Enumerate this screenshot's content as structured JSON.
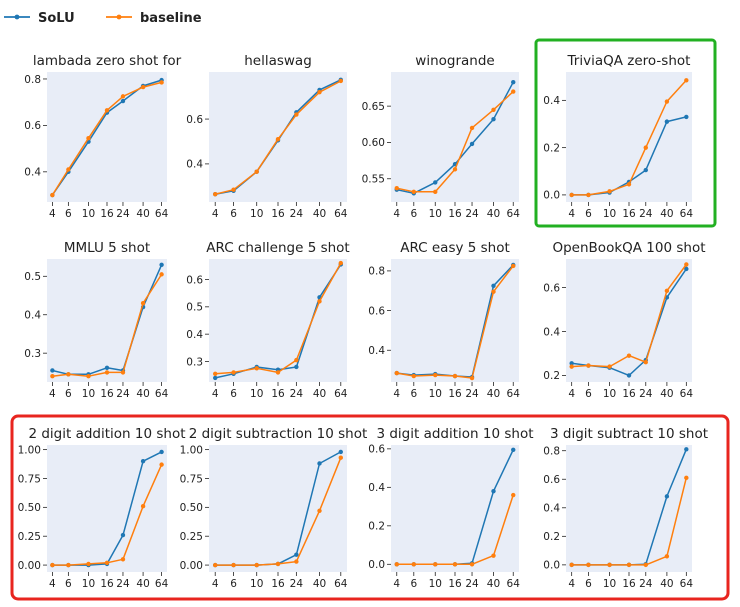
{
  "legend": [
    {
      "name": "SoLU",
      "color": "#1f77b4"
    },
    {
      "name": "baseline",
      "color": "#ff7f0e"
    }
  ],
  "colors": {
    "plot_bg": "#e8edf7",
    "green_box": "#22b022",
    "red_box": "#e8251f"
  },
  "highlight": {
    "green": [
      "TriviaQA zero-shot"
    ],
    "red": [
      "2 digit addition 10 shot",
      "2 digit subtraction 10 shot",
      "3 digit addition 10 shot",
      "3 digit subtract 10 shot"
    ]
  },
  "chart_data": [
    {
      "type": "line",
      "title": "lambada zero shot for",
      "x": [
        4,
        6,
        10,
        16,
        24,
        40,
        64
      ],
      "xticks": [
        "4",
        "6",
        "10",
        "16",
        "24",
        "40",
        "64"
      ],
      "ylim": [
        0.27,
        0.83
      ],
      "yticks": [
        0.4,
        0.6,
        0.8
      ],
      "ytick_labels": [
        "0.4",
        "0.6",
        "0.8"
      ],
      "series": [
        {
          "name": "SoLU",
          "values": [
            0.3,
            0.4,
            0.53,
            0.655,
            0.705,
            0.77,
            0.795
          ]
        },
        {
          "name": "baseline",
          "values": [
            0.3,
            0.41,
            0.545,
            0.665,
            0.725,
            0.765,
            0.785
          ]
        }
      ]
    },
    {
      "type": "line",
      "title": "hellaswag",
      "x": [
        4,
        6,
        10,
        16,
        24,
        40,
        64
      ],
      "xticks": [
        "4",
        "6",
        "10",
        "16",
        "24",
        "40",
        "64"
      ],
      "ylim": [
        0.23,
        0.81
      ],
      "yticks": [
        0.4,
        0.6
      ],
      "ytick_labels": [
        "0.4",
        "0.6"
      ],
      "series": [
        {
          "name": "SoLU",
          "values": [
            0.265,
            0.28,
            0.365,
            0.505,
            0.63,
            0.73,
            0.775
          ]
        },
        {
          "name": "baseline",
          "values": [
            0.265,
            0.285,
            0.365,
            0.51,
            0.62,
            0.72,
            0.77
          ]
        }
      ]
    },
    {
      "type": "line",
      "title": "winogrande",
      "x": [
        4,
        6,
        10,
        16,
        24,
        40,
        64
      ],
      "xticks": [
        "4",
        "6",
        "10",
        "16",
        "24",
        "40",
        "64"
      ],
      "ylim": [
        0.518,
        0.697
      ],
      "yticks": [
        0.55,
        0.6,
        0.65
      ],
      "ytick_labels": [
        "0.55",
        "0.60",
        "0.65"
      ],
      "series": [
        {
          "name": "SoLU",
          "values": [
            0.535,
            0.53,
            0.545,
            0.57,
            0.598,
            0.632,
            0.683
          ]
        },
        {
          "name": "baseline",
          "values": [
            0.537,
            0.532,
            0.532,
            0.563,
            0.62,
            0.645,
            0.67
          ]
        }
      ]
    },
    {
      "type": "line",
      "title": "TriviaQA zero-shot",
      "x": [
        4,
        6,
        10,
        16,
        24,
        40,
        64
      ],
      "xticks": [
        "4",
        "6",
        "10",
        "16",
        "24",
        "40",
        "64"
      ],
      "ylim": [
        -0.03,
        0.52
      ],
      "yticks": [
        0.0,
        0.2,
        0.4
      ],
      "ytick_labels": [
        "0.0",
        "0.2",
        "0.4"
      ],
      "series": [
        {
          "name": "SoLU",
          "values": [
            0.0,
            0.0,
            0.01,
            0.055,
            0.105,
            0.31,
            0.33
          ]
        },
        {
          "name": "baseline",
          "values": [
            0.0,
            0.0,
            0.015,
            0.045,
            0.2,
            0.395,
            0.485
          ]
        }
      ]
    },
    {
      "type": "line",
      "title": "MMLU 5 shot",
      "x": [
        4,
        6,
        10,
        16,
        24,
        40,
        64
      ],
      "xticks": [
        "4",
        "6",
        "10",
        "16",
        "24",
        "40",
        "64"
      ],
      "ylim": [
        0.225,
        0.545
      ],
      "yticks": [
        0.3,
        0.4,
        0.5
      ],
      "ytick_labels": [
        "0.3",
        "0.4",
        "0.5"
      ],
      "series": [
        {
          "name": "SoLU",
          "values": [
            0.255,
            0.245,
            0.245,
            0.262,
            0.255,
            0.42,
            0.53
          ]
        },
        {
          "name": "baseline",
          "values": [
            0.24,
            0.245,
            0.24,
            0.25,
            0.25,
            0.43,
            0.505
          ]
        }
      ]
    },
    {
      "type": "line",
      "title": "ARC challenge 5 shot",
      "x": [
        4,
        6,
        10,
        16,
        24,
        40,
        64
      ],
      "xticks": [
        "4",
        "6",
        "10",
        "16",
        "24",
        "40",
        "64"
      ],
      "ylim": [
        0.225,
        0.675
      ],
      "yticks": [
        0.3,
        0.4,
        0.5,
        0.6
      ],
      "ytick_labels": [
        "0.3",
        "0.4",
        "0.5",
        "0.6"
      ],
      "series": [
        {
          "name": "SoLU",
          "values": [
            0.24,
            0.255,
            0.28,
            0.27,
            0.28,
            0.535,
            0.655
          ]
        },
        {
          "name": "baseline",
          "values": [
            0.255,
            0.26,
            0.275,
            0.26,
            0.305,
            0.52,
            0.66
          ]
        }
      ]
    },
    {
      "type": "line",
      "title": "ARC easy 5 shot",
      "x": [
        4,
        6,
        10,
        16,
        24,
        40,
        64
      ],
      "xticks": [
        "4",
        "6",
        "10",
        "16",
        "24",
        "40",
        "64"
      ],
      "ylim": [
        0.24,
        0.86
      ],
      "yticks": [
        0.4,
        0.6,
        0.8
      ],
      "ytick_labels": [
        "0.4",
        "0.6",
        "0.8"
      ],
      "series": [
        {
          "name": "SoLU",
          "values": [
            0.285,
            0.275,
            0.28,
            0.27,
            0.265,
            0.725,
            0.83
          ]
        },
        {
          "name": "baseline",
          "values": [
            0.285,
            0.27,
            0.275,
            0.27,
            0.26,
            0.695,
            0.825
          ]
        }
      ]
    },
    {
      "type": "line",
      "title": "OpenBookQA 100 shot",
      "x": [
        4,
        6,
        10,
        16,
        24,
        40,
        64
      ],
      "xticks": [
        "4",
        "6",
        "10",
        "16",
        "24",
        "40",
        "64"
      ],
      "ylim": [
        0.17,
        0.73
      ],
      "yticks": [
        0.2,
        0.4,
        0.6
      ],
      "ytick_labels": [
        "0.2",
        "0.4",
        "0.6"
      ],
      "series": [
        {
          "name": "SoLU",
          "values": [
            0.255,
            0.245,
            0.235,
            0.2,
            0.27,
            0.555,
            0.685
          ]
        },
        {
          "name": "baseline",
          "values": [
            0.24,
            0.245,
            0.24,
            0.29,
            0.26,
            0.585,
            0.705
          ]
        }
      ]
    },
    {
      "type": "line",
      "title": "2 digit addition 10 shot",
      "x": [
        4,
        6,
        10,
        16,
        24,
        40,
        64
      ],
      "xticks": [
        "4",
        "6",
        "10",
        "16",
        "24",
        "40",
        "64"
      ],
      "ylim": [
        -0.06,
        1.04
      ],
      "yticks": [
        0.0,
        0.25,
        0.5,
        0.75,
        1.0
      ],
      "ytick_labels": [
        "0.00",
        "0.25",
        "0.50",
        "0.75",
        "1.00"
      ],
      "series": [
        {
          "name": "SoLU",
          "values": [
            0.0,
            0.0,
            0.0,
            0.01,
            0.26,
            0.9,
            0.98
          ]
        },
        {
          "name": "baseline",
          "values": [
            0.0,
            0.0,
            0.01,
            0.02,
            0.05,
            0.51,
            0.87
          ]
        }
      ]
    },
    {
      "type": "line",
      "title": "2 digit subtraction 10 shot",
      "x": [
        4,
        6,
        10,
        16,
        24,
        40,
        64
      ],
      "xticks": [
        "4",
        "6",
        "10",
        "16",
        "24",
        "40",
        "64"
      ],
      "ylim": [
        -0.06,
        1.04
      ],
      "yticks": [
        0.0,
        0.25,
        0.5,
        0.75,
        1.0
      ],
      "ytick_labels": [
        "0.00",
        "0.25",
        "0.50",
        "0.75",
        "1.00"
      ],
      "series": [
        {
          "name": "SoLU",
          "values": [
            0.0,
            0.0,
            0.0,
            0.01,
            0.09,
            0.88,
            0.98
          ]
        },
        {
          "name": "baseline",
          "values": [
            0.0,
            0.0,
            0.0,
            0.01,
            0.03,
            0.47,
            0.93
          ]
        }
      ]
    },
    {
      "type": "line",
      "title": "3 digit addition 10 shot",
      "x": [
        4,
        6,
        10,
        16,
        24,
        40,
        64
      ],
      "xticks": [
        "4",
        "6",
        "10",
        "16",
        "24",
        "40",
        "64"
      ],
      "ylim": [
        -0.04,
        0.62
      ],
      "yticks": [
        0.0,
        0.2,
        0.4,
        0.6
      ],
      "ytick_labels": [
        "0.0",
        "0.2",
        "0.4",
        "0.6"
      ],
      "series": [
        {
          "name": "SoLU",
          "values": [
            0.0,
            0.0,
            0.0,
            0.0,
            0.005,
            0.38,
            0.595
          ]
        },
        {
          "name": "baseline",
          "values": [
            0.0,
            0.0,
            0.0,
            0.0,
            0.0,
            0.045,
            0.36
          ]
        }
      ]
    },
    {
      "type": "line",
      "title": "3 digit subtract 10 shot",
      "x": [
        4,
        6,
        10,
        16,
        24,
        40,
        64
      ],
      "xticks": [
        "4",
        "6",
        "10",
        "16",
        "24",
        "40",
        "64"
      ],
      "ylim": [
        -0.05,
        0.84
      ],
      "yticks": [
        0.0,
        0.2,
        0.4,
        0.6,
        0.8
      ],
      "ytick_labels": [
        "0.0",
        "0.2",
        "0.4",
        "0.6",
        "0.8"
      ],
      "series": [
        {
          "name": "SoLU",
          "values": [
            0.0,
            0.0,
            0.0,
            0.0,
            0.005,
            0.48,
            0.81
          ]
        },
        {
          "name": "baseline",
          "values": [
            0.0,
            0.0,
            0.0,
            0.0,
            0.0,
            0.06,
            0.61
          ]
        }
      ]
    }
  ]
}
